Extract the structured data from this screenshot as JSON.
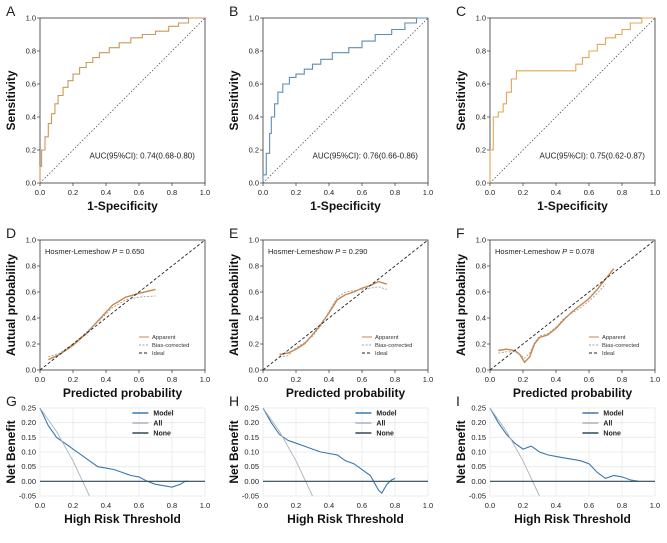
{
  "colors": {
    "roc_A": "#c89a58",
    "roc_B": "#5b8db8",
    "roc_C": "#e2a85a",
    "apparent": "#c8864a",
    "bias": "#a0a0a0",
    "ideal": "#222222",
    "model": "#3a78b0",
    "all": "#a8b4c0",
    "none": "#2d4a5a",
    "grid": "#e8e8e8"
  },
  "chart_data": [
    {
      "type": "line",
      "panel": "A",
      "kind": "roc",
      "xlabel": "1-Specificity",
      "ylabel": "Sensitivity",
      "xticks": [
        "0.0",
        "0.2",
        "0.4",
        "0.6",
        "0.8",
        "1.0"
      ],
      "yticks": [
        "0.0",
        "0.2",
        "0.4",
        "0.6",
        "0.8",
        "1.0"
      ],
      "xlim": [
        0,
        1
      ],
      "ylim": [
        0,
        1
      ],
      "annotation": "AUC(95%CI): 0.74(0.68-0.80)",
      "series": [
        {
          "name": "ROC",
          "color_key": "roc_A",
          "style": "step",
          "x": [
            0,
            0,
            0.01,
            0.01,
            0.03,
            0.03,
            0.05,
            0.05,
            0.07,
            0.07,
            0.09,
            0.09,
            0.11,
            0.11,
            0.14,
            0.14,
            0.17,
            0.17,
            0.2,
            0.2,
            0.24,
            0.24,
            0.28,
            0.28,
            0.32,
            0.32,
            0.36,
            0.36,
            0.42,
            0.42,
            0.48,
            0.48,
            0.55,
            0.55,
            0.62,
            0.62,
            0.7,
            0.7,
            0.78,
            0.78,
            0.84,
            0.84,
            0.9,
            0.9,
            1
          ],
          "y": [
            0,
            0.1,
            0.1,
            0.2,
            0.2,
            0.28,
            0.28,
            0.36,
            0.36,
            0.42,
            0.42,
            0.48,
            0.48,
            0.53,
            0.53,
            0.58,
            0.58,
            0.62,
            0.62,
            0.66,
            0.66,
            0.7,
            0.7,
            0.73,
            0.73,
            0.76,
            0.76,
            0.79,
            0.79,
            0.82,
            0.82,
            0.85,
            0.85,
            0.88,
            0.88,
            0.9,
            0.9,
            0.92,
            0.92,
            0.95,
            0.95,
            0.97,
            0.97,
            1,
            1
          ]
        }
      ]
    },
    {
      "type": "line",
      "panel": "B",
      "kind": "roc",
      "xlabel": "1-Specificity",
      "ylabel": "Sensitivity",
      "xticks": [
        "0.0",
        "0.2",
        "0.4",
        "0.6",
        "0.8",
        "1.0"
      ],
      "yticks": [
        "0.0",
        "0.2",
        "0.4",
        "0.6",
        "0.8",
        "1.0"
      ],
      "xlim": [
        0,
        1
      ],
      "ylim": [
        0,
        1
      ],
      "annotation": "AUC(95%CI): 0.76(0.66-0.86)",
      "series": [
        {
          "name": "ROC",
          "color_key": "roc_B",
          "style": "step",
          "x": [
            0,
            0,
            0.02,
            0.02,
            0.04,
            0.04,
            0.05,
            0.05,
            0.07,
            0.07,
            0.09,
            0.09,
            0.12,
            0.12,
            0.16,
            0.16,
            0.2,
            0.2,
            0.25,
            0.25,
            0.3,
            0.3,
            0.35,
            0.35,
            0.42,
            0.42,
            0.52,
            0.52,
            0.6,
            0.6,
            0.68,
            0.68,
            0.78,
            0.78,
            0.86,
            0.86,
            0.93,
            0.93,
            1
          ],
          "y": [
            0,
            0.05,
            0.05,
            0.18,
            0.18,
            0.3,
            0.3,
            0.4,
            0.4,
            0.48,
            0.48,
            0.55,
            0.55,
            0.6,
            0.6,
            0.64,
            0.64,
            0.66,
            0.66,
            0.69,
            0.69,
            0.72,
            0.72,
            0.75,
            0.75,
            0.79,
            0.79,
            0.82,
            0.82,
            0.86,
            0.86,
            0.9,
            0.9,
            0.93,
            0.93,
            0.97,
            0.97,
            1,
            1
          ]
        }
      ]
    },
    {
      "type": "line",
      "panel": "C",
      "kind": "roc",
      "xlabel": "1-Specificity",
      "ylabel": "Sensitivity",
      "xticks": [
        "0.0",
        "0.2",
        "0.4",
        "0.6",
        "0.8",
        "1.0"
      ],
      "yticks": [
        "0.0",
        "0.2",
        "0.4",
        "0.6",
        "0.8",
        "1.0"
      ],
      "xlim": [
        0,
        1
      ],
      "ylim": [
        0,
        1
      ],
      "annotation": "AUC(95%CI): 0.75(0.62-0.87)",
      "series": [
        {
          "name": "ROC",
          "color_key": "roc_C",
          "style": "step",
          "x": [
            0,
            0,
            0.02,
            0.02,
            0.05,
            0.05,
            0.08,
            0.08,
            0.1,
            0.1,
            0.13,
            0.13,
            0.16,
            0.16,
            0.52,
            0.52,
            0.56,
            0.56,
            0.6,
            0.6,
            0.65,
            0.65,
            0.7,
            0.7,
            0.76,
            0.76,
            0.8,
            0.8,
            0.85,
            0.85,
            0.92,
            0.92,
            1
          ],
          "y": [
            0,
            0.2,
            0.2,
            0.4,
            0.4,
            0.43,
            0.43,
            0.48,
            0.48,
            0.55,
            0.55,
            0.63,
            0.63,
            0.68,
            0.68,
            0.72,
            0.72,
            0.76,
            0.76,
            0.8,
            0.8,
            0.84,
            0.84,
            0.88,
            0.88,
            0.9,
            0.9,
            0.93,
            0.93,
            0.97,
            0.97,
            1,
            1
          ]
        }
      ]
    },
    {
      "type": "line",
      "panel": "D",
      "kind": "calibration",
      "xlabel": "Predicted probability",
      "ylabel": "Autual probability",
      "xticks": [
        "0.0",
        "0.2",
        "0.4",
        "0.6",
        "0.8",
        "1.0"
      ],
      "yticks": [
        "0.0",
        "0.2",
        "0.4",
        "0.6",
        "0.8",
        "1.0"
      ],
      "xlim": [
        0,
        1
      ],
      "ylim": [
        0,
        1
      ],
      "annotation_prefix": "Hosmer-Lemeshow ",
      "annotation_italic": "P",
      "annotation_suffix": " = 0.650",
      "legend": [
        "Apparent",
        "Bias-corrected",
        "Ideal"
      ],
      "series": [
        {
          "name": "Apparent",
          "color_key": "apparent",
          "x": [
            0.05,
            0.12,
            0.2,
            0.28,
            0.36,
            0.44,
            0.52,
            0.6,
            0.7
          ],
          "y": [
            0.08,
            0.12,
            0.19,
            0.28,
            0.39,
            0.5,
            0.56,
            0.59,
            0.62
          ]
        },
        {
          "name": "Bias-corrected",
          "color_key": "bias",
          "x": [
            0.05,
            0.12,
            0.2,
            0.28,
            0.36,
            0.44,
            0.52,
            0.6,
            0.7
          ],
          "y": [
            0.1,
            0.13,
            0.2,
            0.29,
            0.38,
            0.48,
            0.54,
            0.56,
            0.57
          ]
        },
        {
          "name": "Ideal",
          "color_key": "ideal",
          "x": [
            0,
            1
          ],
          "y": [
            0,
            1
          ]
        }
      ]
    },
    {
      "type": "line",
      "panel": "E",
      "kind": "calibration",
      "xlabel": "Predicted probability",
      "ylabel": "Autual probability",
      "xticks": [
        "0.0",
        "0.2",
        "0.4",
        "0.6",
        "0.8",
        "1.0"
      ],
      "yticks": [
        "0.0",
        "0.2",
        "0.4",
        "0.6",
        "0.8",
        "1.0"
      ],
      "xlim": [
        0,
        1
      ],
      "ylim": [
        0,
        1
      ],
      "annotation_prefix": "Hosmer-Lemeshow ",
      "annotation_italic": "P",
      "annotation_suffix": " = 0.290",
      "legend": [
        "Apparent",
        "Bias-corrected",
        "Ideal"
      ],
      "series": [
        {
          "name": "Apparent",
          "color_key": "apparent",
          "x": [
            0.1,
            0.15,
            0.2,
            0.25,
            0.3,
            0.35,
            0.4,
            0.45,
            0.5,
            0.55,
            0.6,
            0.65,
            0.7,
            0.75
          ],
          "y": [
            0.12,
            0.13,
            0.16,
            0.2,
            0.27,
            0.35,
            0.44,
            0.54,
            0.58,
            0.6,
            0.63,
            0.65,
            0.68,
            0.66
          ]
        },
        {
          "name": "Bias-corrected",
          "color_key": "bias",
          "x": [
            0.1,
            0.15,
            0.2,
            0.25,
            0.3,
            0.35,
            0.4,
            0.45,
            0.5,
            0.55,
            0.6,
            0.65,
            0.7,
            0.75
          ],
          "y": [
            0.1,
            0.11,
            0.17,
            0.21,
            0.26,
            0.34,
            0.45,
            0.56,
            0.6,
            0.61,
            0.62,
            0.63,
            0.64,
            0.62
          ]
        },
        {
          "name": "Ideal",
          "color_key": "ideal",
          "x": [
            0,
            1
          ],
          "y": [
            0,
            1
          ]
        }
      ]
    },
    {
      "type": "line",
      "panel": "F",
      "kind": "calibration",
      "xlabel": "Predicted probability",
      "ylabel": "Autual probability",
      "xticks": [
        "0.0",
        "0.2",
        "0.4",
        "0.6",
        "0.8",
        "1.0"
      ],
      "yticks": [
        "0.0",
        "0.2",
        "0.4",
        "0.6",
        "0.8",
        "1.0"
      ],
      "xlim": [
        0,
        1
      ],
      "ylim": [
        0,
        1
      ],
      "annotation_prefix": "Hosmer-Lemeshow ",
      "annotation_italic": "P",
      "annotation_suffix": " = 0.078",
      "legend": [
        "Apparent",
        "Bias-corrected",
        "Ideal"
      ],
      "series": [
        {
          "name": "Apparent",
          "color_key": "apparent",
          "x": [
            0.05,
            0.1,
            0.15,
            0.18,
            0.21,
            0.24,
            0.27,
            0.3,
            0.35,
            0.4,
            0.45,
            0.5,
            0.55,
            0.6,
            0.65,
            0.7,
            0.75
          ],
          "y": [
            0.15,
            0.16,
            0.15,
            0.12,
            0.06,
            0.1,
            0.2,
            0.25,
            0.27,
            0.32,
            0.39,
            0.45,
            0.5,
            0.55,
            0.62,
            0.7,
            0.78
          ]
        },
        {
          "name": "Bias-corrected",
          "color_key": "bias",
          "x": [
            0.05,
            0.1,
            0.15,
            0.18,
            0.21,
            0.24,
            0.27,
            0.3,
            0.35,
            0.4,
            0.45,
            0.5,
            0.55,
            0.6,
            0.65,
            0.7
          ],
          "y": [
            0.13,
            0.14,
            0.14,
            0.12,
            0.09,
            0.13,
            0.21,
            0.26,
            0.28,
            0.33,
            0.4,
            0.44,
            0.48,
            0.53,
            0.59,
            0.66
          ]
        },
        {
          "name": "Ideal",
          "color_key": "ideal",
          "x": [
            0,
            1
          ],
          "y": [
            0,
            1
          ]
        }
      ]
    },
    {
      "type": "line",
      "panel": "G",
      "kind": "dca",
      "xlabel": "High Risk Threshold",
      "ylabel": "Net Benefit",
      "xticks": [
        "0.0",
        "0.2",
        "0.4",
        "0.6",
        "0.8",
        "1.0"
      ],
      "yticks": [
        "-0.05",
        "0.00",
        "0.05",
        "0.10",
        "0.15",
        "0.20",
        "0.25"
      ],
      "xlim": [
        0,
        1
      ],
      "ylim": [
        -0.05,
        0.25
      ],
      "legend": [
        "Model",
        "All",
        "None"
      ],
      "series": [
        {
          "name": "Model",
          "color_key": "model",
          "x": [
            0,
            0.05,
            0.1,
            0.15,
            0.2,
            0.25,
            0.3,
            0.35,
            0.4,
            0.45,
            0.5,
            0.55,
            0.6,
            0.65,
            0.7,
            0.75,
            0.8,
            0.85,
            0.88,
            0.9
          ],
          "y": [
            0.25,
            0.19,
            0.15,
            0.13,
            0.11,
            0.09,
            0.07,
            0.05,
            0.045,
            0.04,
            0.03,
            0.02,
            0.015,
            0.0,
            -0.01,
            -0.015,
            -0.02,
            -0.01,
            0.0,
            0.0
          ]
        },
        {
          "name": "All",
          "color_key": "all",
          "x": [
            0,
            0.1,
            0.2,
            0.3
          ],
          "y": [
            0.25,
            0.17,
            0.07,
            -0.05
          ]
        },
        {
          "name": "None",
          "color_key": "none",
          "x": [
            0,
            1
          ],
          "y": [
            0,
            0
          ]
        }
      ]
    },
    {
      "type": "line",
      "panel": "H",
      "kind": "dca",
      "xlabel": "High Risk Threshold",
      "ylabel": "Net Benefit",
      "xticks": [
        "0.0",
        "0.2",
        "0.4",
        "0.6",
        "0.8",
        "1.0"
      ],
      "yticks": [
        "-0.05",
        "0.00",
        "0.05",
        "0.10",
        "0.15",
        "0.20",
        "0.25"
      ],
      "xlim": [
        0,
        1
      ],
      "ylim": [
        -0.05,
        0.25
      ],
      "legend": [
        "Model",
        "All",
        "None"
      ],
      "series": [
        {
          "name": "Model",
          "color_key": "model",
          "x": [
            0,
            0.05,
            0.1,
            0.15,
            0.2,
            0.25,
            0.3,
            0.35,
            0.4,
            0.45,
            0.5,
            0.55,
            0.6,
            0.65,
            0.7,
            0.72,
            0.75,
            0.78,
            0.8
          ],
          "y": [
            0.25,
            0.2,
            0.16,
            0.14,
            0.13,
            0.12,
            0.11,
            0.1,
            0.095,
            0.09,
            0.07,
            0.06,
            0.04,
            0.02,
            -0.03,
            -0.04,
            -0.01,
            0.005,
            0.01
          ]
        },
        {
          "name": "All",
          "color_key": "all",
          "x": [
            0,
            0.1,
            0.2,
            0.3
          ],
          "y": [
            0.25,
            0.17,
            0.07,
            -0.05
          ]
        },
        {
          "name": "None",
          "color_key": "none",
          "x": [
            0,
            1
          ],
          "y": [
            0,
            0
          ]
        }
      ]
    },
    {
      "type": "line",
      "panel": "I",
      "kind": "dca",
      "xlabel": "High Risk Threshold",
      "ylabel": "Net Benefit",
      "xticks": [
        "0.0",
        "0.2",
        "0.4",
        "0.6",
        "0.8",
        "1.0"
      ],
      "yticks": [
        "-0.05",
        "0.00",
        "0.05",
        "0.10",
        "0.15",
        "0.20",
        "0.25"
      ],
      "xlim": [
        0,
        1
      ],
      "ylim": [
        -0.05,
        0.25
      ],
      "legend": [
        "Model",
        "All",
        "None"
      ],
      "series": [
        {
          "name": "Model",
          "color_key": "model",
          "x": [
            0,
            0.05,
            0.1,
            0.15,
            0.2,
            0.25,
            0.3,
            0.35,
            0.4,
            0.45,
            0.5,
            0.55,
            0.6,
            0.65,
            0.7,
            0.75,
            0.8,
            0.85,
            0.9
          ],
          "y": [
            0.25,
            0.2,
            0.16,
            0.13,
            0.11,
            0.12,
            0.1,
            0.09,
            0.085,
            0.08,
            0.075,
            0.07,
            0.06,
            0.03,
            0.01,
            0.02,
            0.015,
            0.005,
            0.0
          ]
        },
        {
          "name": "All",
          "color_key": "all",
          "x": [
            0,
            0.1,
            0.2,
            0.3
          ],
          "y": [
            0.25,
            0.17,
            0.07,
            -0.05
          ]
        },
        {
          "name": "None",
          "color_key": "none",
          "x": [
            0,
            1
          ],
          "y": [
            0,
            0
          ]
        }
      ]
    }
  ]
}
